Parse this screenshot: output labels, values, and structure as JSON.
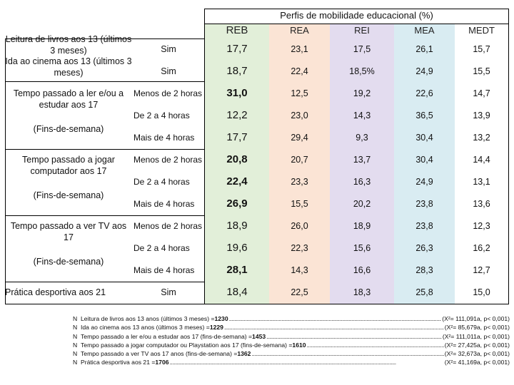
{
  "table": {
    "group_header": "Perfis de mobilidade educacional (%)",
    "columns": [
      "REB",
      "REA",
      "REI",
      "MEA",
      "MEDT"
    ],
    "column_colors": [
      "#e2efd9",
      "#fbe4d5",
      "#e3dcef",
      "#d9ecf2",
      "#ffffff"
    ],
    "rows": [
      {
        "section_label": "Leitura de livros aos 13 (últimos 3 meses)",
        "sub": "Sim",
        "values": [
          "17,7",
          "23,1",
          "17,5",
          "26,1",
          "15,7"
        ],
        "bold_reb": false
      },
      {
        "section_label": "Ida ao cinema aos 13 (últimos 3 meses)",
        "sub": "Sim",
        "values": [
          "18,7",
          "22,4",
          "18,5%",
          "24,9",
          "15,5"
        ],
        "bold_reb": false
      },
      {
        "section_label": "",
        "sub": "Menos de 2 horas",
        "values": [
          "31,0",
          "12,5",
          "19,2",
          "22,6",
          "14,7"
        ],
        "bold_reb": true
      },
      {
        "section_label": "",
        "sub": "De 2 a 4 horas",
        "values": [
          "12,2",
          "23,0",
          "14,3",
          "36,5",
          "13,9"
        ],
        "bold_reb": false
      },
      {
        "section_label": "",
        "sub": "Mais de 4 horas",
        "values": [
          "17,7",
          "29,4",
          "9,3",
          "30,4",
          "13,2"
        ],
        "bold_reb": false
      },
      {
        "section_label": "",
        "sub": "Menos de 2 horas",
        "values": [
          "20,8",
          "20,7",
          "13,7",
          "30,4",
          "14,4"
        ],
        "bold_reb": true
      },
      {
        "section_label": "",
        "sub": "De 2 a 4 horas",
        "values": [
          "22,4",
          "23,3",
          "16,3",
          "24,9",
          "13,1"
        ],
        "bold_reb": true
      },
      {
        "section_label": "",
        "sub": "Mais de 4 horas",
        "values": [
          "26,9",
          "15,5",
          "20,2",
          "23,8",
          "13,6"
        ],
        "bold_reb": true
      },
      {
        "section_label": "",
        "sub": "Menos de 2 horas",
        "values": [
          "18,9",
          "26,0",
          "18,9",
          "23,8",
          "12,3"
        ],
        "bold_reb": false
      },
      {
        "section_label": "",
        "sub": "De 2 a 4 horas",
        "values": [
          "19,6",
          "22,3",
          "15,6",
          "26,3",
          "16,2"
        ],
        "bold_reb": false
      },
      {
        "section_label": "",
        "sub": "Mais de 4 horas",
        "values": [
          "28,1",
          "14,3",
          "16,6",
          "28,3",
          "12,7"
        ],
        "bold_reb": true
      },
      {
        "section_label": "Prática desportiva aos 21",
        "sub": "Sim",
        "values": [
          "18,4",
          "22,5",
          "18,3",
          "25,8",
          "15,0"
        ],
        "bold_reb": false
      }
    ],
    "group_labels": {
      "reading_study": {
        "line1": "Tempo passado a ler e/ou a estudar aos 17",
        "line2": "(Fins-de-semana)"
      },
      "computer": {
        "line1": "Tempo passado a jogar computador aos 17",
        "line2": "(Fins-de-semana)"
      },
      "tv": {
        "line1": "Tempo passado a ver TV aos 17",
        "line2": "(Fins-de-semana)"
      }
    }
  },
  "notes": [
    {
      "prefix": "N",
      "label": "Leitura de livros aos 13 anos (últimos 3 meses) = ",
      "value": "1230",
      "stat": "(X²= 111,091a, p< 0,001)"
    },
    {
      "prefix": "N",
      "label": "Ida ao cinema aos 13 anos (últimos 3 meses) = ",
      "value": "1229",
      "stat": "(X²= 85,679a, p< 0,001)"
    },
    {
      "prefix": "N",
      "label": "Tempo passado a ler e/ou a estudar aos 17 (fins-de-semana) = ",
      "value": "1453",
      "stat": "(X²= 111,011a, p< 0,001)"
    },
    {
      "prefix": "N",
      "label": "Tempo passado a jogar computador ou Playstation aos 17 (fins-de-semana) = ",
      "value": "1610",
      "stat": "(X²= 27,425a, p< 0,001)"
    },
    {
      "prefix": "N",
      "label": "Tempo passado a ver TV aos 17 anos (fins-de-semana) = ",
      "value": "1362",
      "stat": "(X²= 32,673a, p< 0,001)"
    },
    {
      "prefix": "N",
      "label": "Prática desportiva aos 21 = ",
      "value": "1706",
      "stat": "(X²= 41,169a, p< 0,001)"
    }
  ]
}
